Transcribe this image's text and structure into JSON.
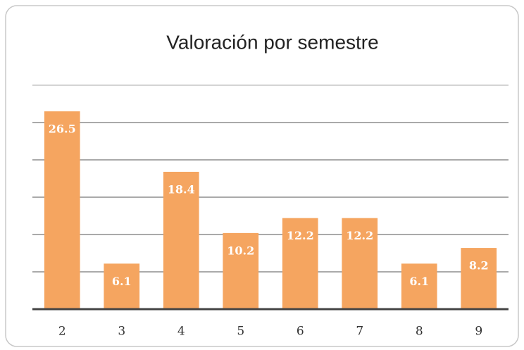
{
  "chart_data": {
    "type": "bar",
    "title": "Valoración por semestre",
    "categories": [
      "2",
      "3",
      "4",
      "5",
      "6",
      "7",
      "8",
      "9"
    ],
    "values": [
      26.5,
      6.1,
      18.4,
      10.2,
      12.2,
      12.2,
      6.1,
      8.2
    ],
    "color": "#f5a560",
    "ylim": [
      0,
      30
    ],
    "yticks": [
      0,
      5,
      10,
      15,
      20,
      25,
      30
    ],
    "grid": true
  }
}
